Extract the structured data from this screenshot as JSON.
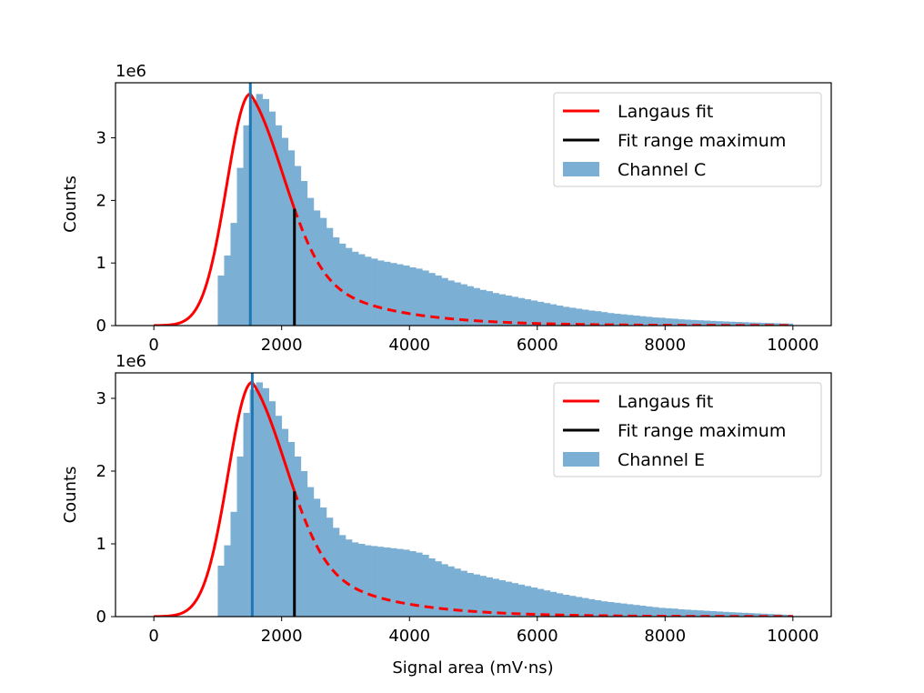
{
  "figure": {
    "xlabel": "Signal area (mV·ns)"
  },
  "chart_data": [
    {
      "type": "bar",
      "title": "",
      "xlabel": "",
      "ylabel": "Counts",
      "y_scale_label": "1e6",
      "xlim": [
        -600,
        10600
      ],
      "ylim": [
        0,
        3.88
      ],
      "xticks": [
        0,
        2000,
        4000,
        6000,
        8000,
        10000
      ],
      "yticks": [
        0,
        1,
        2,
        3
      ],
      "bin_width": 100,
      "histogram": {
        "name": "Channel C",
        "color": "#7bafd4",
        "edges_start": 1000,
        "values": [
          0.8,
          1.12,
          1.64,
          2.52,
          3.2,
          3.6,
          3.7,
          3.62,
          3.42,
          3.2,
          3.0,
          2.8,
          2.55,
          2.31,
          2.04,
          1.84,
          1.72,
          1.56,
          1.41,
          1.31,
          1.24,
          1.18,
          1.14,
          1.1,
          1.07,
          1.04,
          1.02,
          1.0,
          0.98,
          0.96,
          0.93,
          0.91,
          0.88,
          0.84,
          0.8,
          0.76,
          0.72,
          0.69,
          0.66,
          0.63,
          0.6,
          0.57,
          0.55,
          0.52,
          0.5,
          0.48,
          0.46,
          0.44,
          0.42,
          0.4,
          0.38,
          0.36,
          0.34,
          0.32,
          0.3,
          0.285,
          0.27,
          0.255,
          0.24,
          0.23,
          0.215,
          0.2,
          0.19,
          0.18,
          0.17,
          0.16,
          0.15,
          0.14,
          0.13,
          0.125,
          0.115,
          0.11,
          0.1,
          0.095,
          0.09,
          0.085,
          0.08,
          0.075,
          0.07,
          0.066,
          0.062,
          0.058,
          0.054,
          0.05,
          0.047,
          0.044,
          0.041,
          0.038,
          0.035,
          0.033
        ]
      },
      "fit": {
        "name": "Langaus fit",
        "color": "#ff0000",
        "mpv": 1510,
        "peak": 3.7,
        "sigma_left": 370,
        "sigma_right": 560,
        "tail_decay": 1150,
        "x_range": [
          0,
          10000
        ],
        "solid_until": 2200
      },
      "peak_line": {
        "x": 1510,
        "color": "#1f77b4"
      },
      "fit_range_maximum": {
        "name": "Fit range maximum",
        "x": 2200,
        "color": "#000000"
      },
      "legend": {
        "position": "top-right",
        "entries": [
          "Langaus fit",
          "Fit range maximum",
          "Channel C"
        ]
      }
    },
    {
      "type": "bar",
      "title": "",
      "xlabel": "Signal area (mV·ns)",
      "ylabel": "Counts",
      "y_scale_label": "1e6",
      "xlim": [
        -600,
        10600
      ],
      "ylim": [
        0,
        3.35
      ],
      "xticks": [
        0,
        2000,
        4000,
        6000,
        8000,
        10000
      ],
      "yticks": [
        0,
        1,
        2,
        3
      ],
      "bin_width": 100,
      "histogram": {
        "name": "Channel E",
        "color": "#7bafd4",
        "edges_start": 1000,
        "values": [
          0.7,
          0.98,
          1.44,
          2.2,
          2.8,
          3.12,
          3.22,
          3.14,
          2.96,
          2.76,
          2.58,
          2.4,
          2.2,
          2.0,
          1.78,
          1.62,
          1.5,
          1.36,
          1.22,
          1.12,
          1.06,
          1.02,
          1.0,
          0.98,
          0.97,
          0.96,
          0.95,
          0.94,
          0.93,
          0.92,
          0.9,
          0.88,
          0.85,
          0.8,
          0.76,
          0.72,
          0.69,
          0.66,
          0.63,
          0.6,
          0.58,
          0.56,
          0.54,
          0.52,
          0.5,
          0.48,
          0.46,
          0.44,
          0.42,
          0.4,
          0.38,
          0.36,
          0.34,
          0.32,
          0.3,
          0.285,
          0.27,
          0.255,
          0.24,
          0.225,
          0.21,
          0.2,
          0.19,
          0.18,
          0.17,
          0.16,
          0.15,
          0.14,
          0.13,
          0.12,
          0.115,
          0.11,
          0.1,
          0.095,
          0.09,
          0.085,
          0.08,
          0.075,
          0.07,
          0.065,
          0.06,
          0.056,
          0.052,
          0.048,
          0.044,
          0.04,
          0.036,
          0.032,
          0.028,
          0.024
        ]
      },
      "fit": {
        "name": "Langaus fit",
        "color": "#ff0000",
        "mpv": 1540,
        "peak": 3.22,
        "sigma_left": 380,
        "sigma_right": 570,
        "tail_decay": 1150,
        "x_range": [
          0,
          10000
        ],
        "solid_until": 2200
      },
      "peak_line": {
        "x": 1540,
        "color": "#1f77b4"
      },
      "fit_range_maximum": {
        "name": "Fit range maximum",
        "x": 2200,
        "color": "#000000"
      },
      "legend": {
        "position": "top-right",
        "entries": [
          "Langaus fit",
          "Fit range maximum",
          "Channel E"
        ]
      }
    }
  ]
}
